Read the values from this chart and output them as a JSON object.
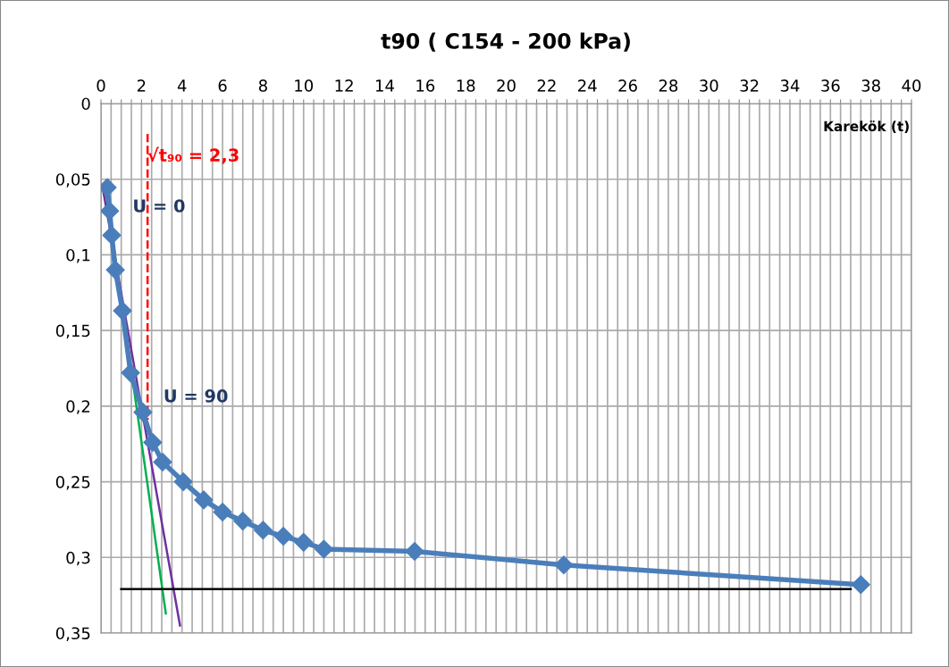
{
  "chart_data": {
    "type": "line",
    "title": "t90 ( C154 - 200 kPa)",
    "xlabel": "Karekök (t)",
    "xlim": [
      0,
      40
    ],
    "ylim": [
      0.35,
      0
    ],
    "xticks": [
      0,
      {
        "value": 0.5,
        "label": null
      },
      {
        "value": 1,
        "label": null
      },
      {
        "value": 1.5,
        "label": null
      },
      2,
      {
        "value": 2.5,
        "label": null
      },
      {
        "value": 3,
        "label": null
      },
      {
        "value": 3.5,
        "label": null
      },
      4,
      {
        "value": 4.5,
        "label": null
      },
      {
        "value": 5,
        "label": null
      },
      {
        "value": 5.5,
        "label": null
      },
      6,
      {
        "value": 6.5,
        "label": null
      },
      {
        "value": 7,
        "label": null
      },
      {
        "value": 7.5,
        "label": null
      },
      8,
      {
        "value": 8.5,
        "label": null
      },
      {
        "value": 9,
        "label": null
      },
      {
        "value": 9.5,
        "label": null
      },
      10,
      {
        "value": 10.5,
        "label": null
      },
      {
        "value": 11,
        "label": null
      },
      {
        "value": 11.5,
        "label": null
      },
      12,
      {
        "value": 12.5,
        "label": null
      },
      {
        "value": 13,
        "label": null
      },
      {
        "value": 13.5,
        "label": null
      },
      14,
      {
        "value": 14.5,
        "label": null
      },
      {
        "value": 15,
        "label": null
      },
      {
        "value": 15.5,
        "label": null
      },
      16,
      {
        "value": 16.5,
        "label": null
      },
      {
        "value": 17,
        "label": null
      },
      {
        "value": 17.5,
        "label": null
      },
      18,
      {
        "value": 18.5,
        "label": null
      },
      {
        "value": 19,
        "label": null
      },
      {
        "value": 19.5,
        "label": null
      },
      20,
      {
        "value": 20.5,
        "label": null
      },
      {
        "value": 21,
        "label": null
      },
      {
        "value": 21.5,
        "label": null
      },
      22,
      {
        "value": 22.5,
        "label": null
      },
      {
        "value": 23,
        "label": null
      },
      {
        "value": 23.5,
        "label": null
      },
      24,
      {
        "value": 24.5,
        "label": null
      },
      {
        "value": 25,
        "label": null
      },
      {
        "value": 25.5,
        "label": null
      },
      26,
      {
        "value": 26.5,
        "label": null
      },
      {
        "value": 27,
        "label": null
      },
      {
        "value": 27.5,
        "label": null
      },
      28,
      {
        "value": 28.5,
        "label": null
      },
      {
        "value": 29,
        "label": null
      },
      {
        "value": 29.5,
        "label": null
      },
      30,
      {
        "value": 30.5,
        "label": null
      },
      {
        "value": 31,
        "label": null
      },
      {
        "value": 31.5,
        "label": null
      },
      32,
      {
        "value": 32.5,
        "label": null
      },
      {
        "value": 33,
        "label": null
      },
      {
        "value": 33.5,
        "label": null
      },
      34,
      {
        "value": 34.5,
        "label": null
      },
      {
        "value": 35,
        "label": null
      },
      {
        "value": 35.5,
        "label": null
      },
      36,
      {
        "value": 36.5,
        "label": null
      },
      {
        "value": 37,
        "label": null
      },
      {
        "value": 37.5,
        "label": null
      },
      38,
      {
        "value": 38.5,
        "label": null
      },
      {
        "value": 39,
        "label": null
      },
      {
        "value": 39.5,
        "label": null
      },
      40
    ],
    "yticks": [
      0,
      {
        "value": 0.05,
        "label": "0,05"
      },
      {
        "value": 0.1,
        "label": "0,1"
      },
      {
        "value": 0.15,
        "label": "0,15"
      },
      {
        "value": 0.2,
        "label": "0,2"
      },
      {
        "value": 0.25,
        "label": "0,25"
      },
      {
        "value": 0.3,
        "label": "0,3"
      },
      {
        "value": 0.35,
        "label": "0,35"
      }
    ],
    "grid": true,
    "legend": false,
    "series": [
      {
        "color": "#00b050",
        "x": [
          0.2,
          3.2
        ],
        "values": [
          0.054,
          0.337
        ]
      },
      {
        "color": "#7030a0",
        "x": [
          0.1,
          3.9
        ],
        "values": [
          0.057,
          0.345
        ]
      },
      {
        "color": "#000000",
        "x": [
          1.0,
          37.0
        ],
        "values": [
          0.321,
          0.321
        ]
      },
      {
        "color": "#ff0000",
        "line_style": "dashed",
        "x": [
          2.3,
          2.3
        ],
        "values": [
          0.02,
          0.209
        ]
      },
      {
        "color": "#4a7ebb",
        "marker": "diamond",
        "x": [
          0.31,
          0.43,
          0.53,
          0.71,
          1.06,
          1.46,
          2.07,
          2.55,
          3.04,
          4.06,
          5.07,
          6.0,
          7.0,
          8.0,
          9.0,
          10.0,
          11.0,
          15.48,
          22.84,
          37.5
        ],
        "values": [
          0.0555,
          0.071,
          0.087,
          0.11,
          0.137,
          0.178,
          0.204,
          0.224,
          0.237,
          0.25,
          0.262,
          0.27,
          0.276,
          0.282,
          0.286,
          0.29,
          0.2945,
          0.296,
          0.305,
          0.318
        ]
      }
    ],
    "annotations": [
      "√t₉₀ = 2,3",
      "U = 0",
      "U = 90"
    ]
  }
}
